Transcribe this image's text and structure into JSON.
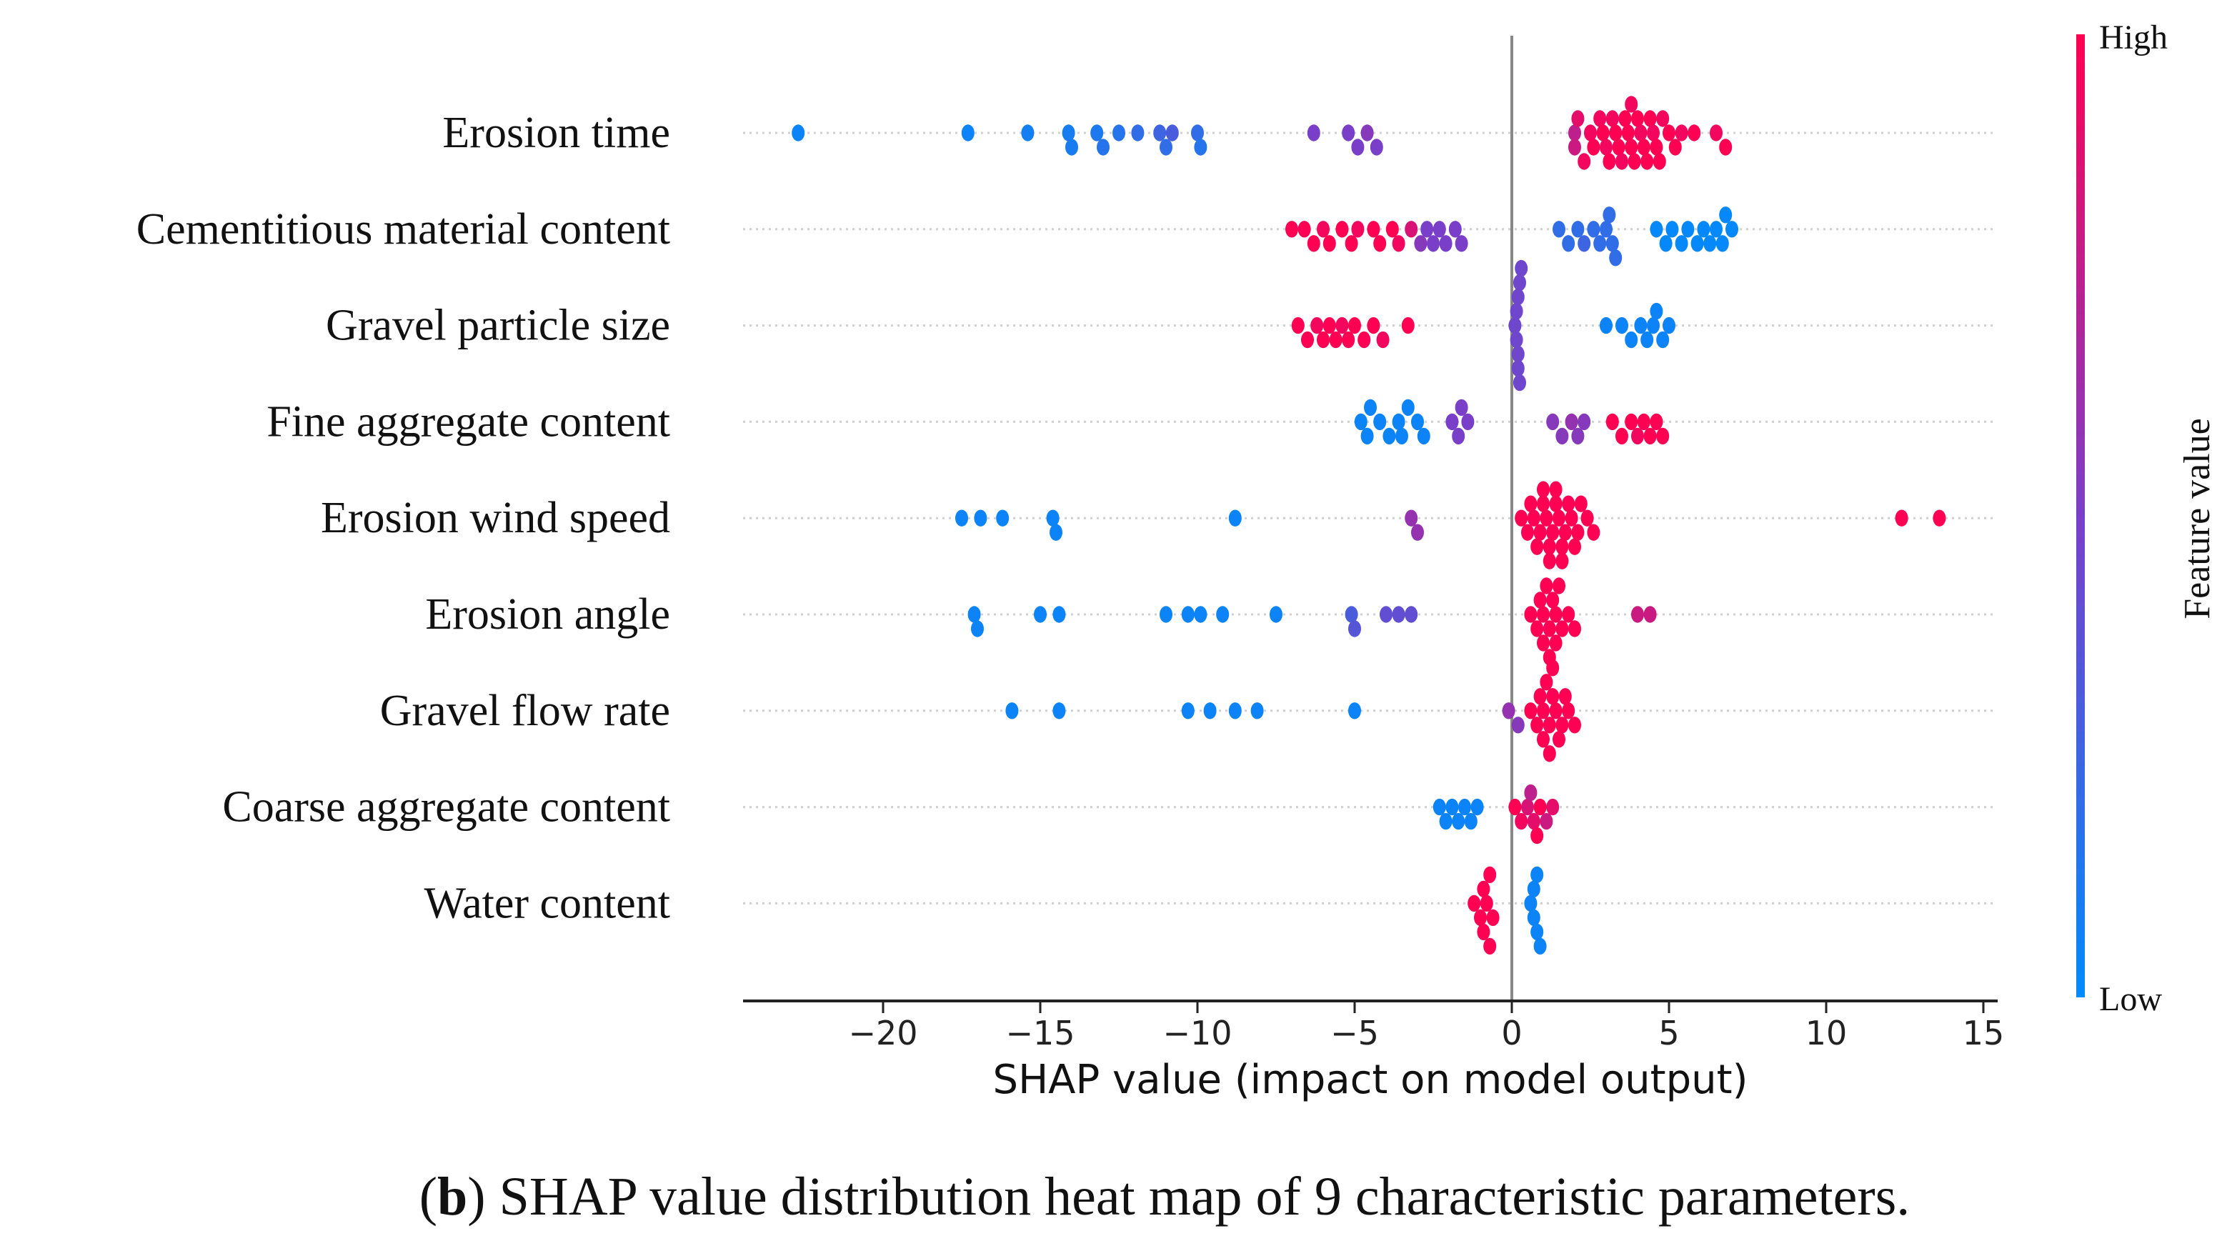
{
  "chart_data": {
    "type": "scatter",
    "subtype": "shap-beeswarm",
    "xlabel": "SHAP value (impact on model output)",
    "xlim": [
      -24.5,
      15.5
    ],
    "xticks": [
      -20,
      -15,
      -10,
      -5,
      0,
      5,
      10,
      15
    ],
    "xtick_labels": [
      "−20",
      "−15",
      "−10",
      "−5",
      "0",
      "5",
      "10",
      "15"
    ],
    "colorbar": {
      "label": "Feature value",
      "high": "High",
      "low": "Low",
      "low_color": "#008bfb",
      "mid_color": "#7a3fc8",
      "high_color": "#ff0052"
    },
    "caption": {
      "letter": "b",
      "text": ") SHAP value distribution heat map of 9 characteristic parameters.",
      "open": "("
    },
    "features": [
      {
        "name": "Erosion time",
        "points": [
          [
            -22.7,
            0.05
          ],
          [
            -17.3,
            0.05
          ],
          [
            -15.4,
            0.08
          ],
          [
            -14.1,
            0.1
          ],
          [
            -14.0,
            0.1
          ],
          [
            -13.2,
            0.12
          ],
          [
            -13.0,
            0.15
          ],
          [
            -12.5,
            0.15
          ],
          [
            -11.9,
            0.2
          ],
          [
            -11.2,
            0.25
          ],
          [
            -11.0,
            0.2
          ],
          [
            -10.8,
            0.3
          ],
          [
            -10.0,
            0.2
          ],
          [
            -9.9,
            0.15
          ],
          [
            -6.3,
            0.5
          ],
          [
            -5.2,
            0.5
          ],
          [
            -4.9,
            0.5
          ],
          [
            -4.6,
            0.55
          ],
          [
            -4.3,
            0.5
          ],
          [
            2.0,
            0.75
          ],
          [
            2.0,
            0.8
          ],
          [
            2.1,
            0.9
          ],
          [
            2.3,
            0.95
          ],
          [
            2.5,
            0.95
          ],
          [
            2.6,
            1
          ],
          [
            2.8,
            0.95
          ],
          [
            2.9,
            1
          ],
          [
            3.0,
            0.95
          ],
          [
            3.1,
            1
          ],
          [
            3.2,
            0.95
          ],
          [
            3.3,
            1
          ],
          [
            3.4,
            1
          ],
          [
            3.5,
            0.95
          ],
          [
            3.6,
            1
          ],
          [
            3.7,
            1
          ],
          [
            3.8,
            1
          ],
          [
            3.8,
            0.95
          ],
          [
            3.9,
            1
          ],
          [
            4.0,
            1
          ],
          [
            4.1,
            0.95
          ],
          [
            4.2,
            1
          ],
          [
            4.3,
            1
          ],
          [
            4.4,
            1
          ],
          [
            4.5,
            0.95
          ],
          [
            4.6,
            1
          ],
          [
            4.7,
            1
          ],
          [
            4.8,
            0.95
          ],
          [
            5.0,
            1
          ],
          [
            5.2,
            1
          ],
          [
            5.4,
            0.95
          ],
          [
            5.8,
            1
          ],
          [
            6.5,
            0.95
          ],
          [
            6.8,
            1
          ]
        ]
      },
      {
        "name": "Cementitious material content",
        "points": [
          [
            -7.0,
            1
          ],
          [
            -6.6,
            1
          ],
          [
            -6.3,
            1
          ],
          [
            -6.0,
            0.95
          ],
          [
            -5.8,
            1
          ],
          [
            -5.4,
            1
          ],
          [
            -5.1,
            1
          ],
          [
            -4.9,
            0.95
          ],
          [
            -4.4,
            1
          ],
          [
            -4.2,
            1
          ],
          [
            -3.8,
            1
          ],
          [
            -3.6,
            0.95
          ],
          [
            -3.2,
            0.85
          ],
          [
            -2.9,
            0.55
          ],
          [
            -2.7,
            0.5
          ],
          [
            -2.5,
            0.5
          ],
          [
            -2.3,
            0.5
          ],
          [
            -2.1,
            0.5
          ],
          [
            -1.8,
            0.5
          ],
          [
            -1.6,
            0.5
          ],
          [
            1.5,
            0.2
          ],
          [
            1.8,
            0.2
          ],
          [
            2.1,
            0.2
          ],
          [
            2.3,
            0.25
          ],
          [
            2.6,
            0.2
          ],
          [
            2.8,
            0.2
          ],
          [
            3.0,
            0.2
          ],
          [
            3.1,
            0.2
          ],
          [
            3.2,
            0.2
          ],
          [
            3.3,
            0.2
          ],
          [
            4.6,
            0.02
          ],
          [
            4.9,
            0.02
          ],
          [
            5.1,
            0.02
          ],
          [
            5.4,
            0.02
          ],
          [
            5.6,
            0.02
          ],
          [
            5.9,
            0.02
          ],
          [
            6.1,
            0.02
          ],
          [
            6.3,
            0.02
          ],
          [
            6.5,
            0.02
          ],
          [
            6.7,
            0.02
          ],
          [
            6.8,
            0.02
          ],
          [
            7.0,
            0.02
          ]
        ]
      },
      {
        "name": "Gravel particle size",
        "points": [
          [
            -6.8,
            1
          ],
          [
            -6.5,
            1
          ],
          [
            -6.2,
            0.95
          ],
          [
            -6.0,
            1
          ],
          [
            -5.8,
            1
          ],
          [
            -5.6,
            1
          ],
          [
            -5.4,
            0.95
          ],
          [
            -5.2,
            1
          ],
          [
            -5.0,
            1
          ],
          [
            -4.7,
            1
          ],
          [
            -4.4,
            1
          ],
          [
            -4.1,
            0.95
          ],
          [
            -3.3,
            1
          ],
          [
            0.1,
            0.45
          ],
          [
            0.15,
            0.45
          ],
          [
            0.2,
            0.45
          ],
          [
            0.2,
            0.45
          ],
          [
            0.25,
            0.45
          ],
          [
            0.3,
            0.45
          ],
          [
            0.2,
            0.45
          ],
          [
            0.15,
            0.45
          ],
          [
            0.25,
            0.45
          ],
          [
            3.0,
            0.05
          ],
          [
            3.5,
            0.05
          ],
          [
            3.8,
            0.05
          ],
          [
            4.1,
            0.05
          ],
          [
            4.3,
            0.05
          ],
          [
            4.5,
            0.05
          ],
          [
            4.6,
            0.05
          ],
          [
            4.8,
            0.05
          ],
          [
            5.0,
            0.05
          ]
        ]
      },
      {
        "name": "Fine aggregate content",
        "points": [
          [
            -4.8,
            0.05
          ],
          [
            -4.5,
            0.05
          ],
          [
            -4.2,
            0.05
          ],
          [
            -3.9,
            0.05
          ],
          [
            -3.6,
            0.05
          ],
          [
            -3.3,
            0.05
          ],
          [
            -3.0,
            0.05
          ],
          [
            -2.8,
            0.05
          ],
          [
            -4.6,
            0.05
          ],
          [
            -3.5,
            0.05
          ],
          [
            -1.9,
            0.5
          ],
          [
            -1.7,
            0.5
          ],
          [
            -1.6,
            0.5
          ],
          [
            -1.4,
            0.5
          ],
          [
            1.3,
            0.55
          ],
          [
            1.6,
            0.55
          ],
          [
            1.9,
            0.6
          ],
          [
            2.1,
            0.55
          ],
          [
            2.3,
            0.55
          ],
          [
            3.2,
            1
          ],
          [
            3.5,
            1
          ],
          [
            3.8,
            1
          ],
          [
            4.0,
            0.95
          ],
          [
            4.2,
            1
          ],
          [
            4.4,
            1
          ],
          [
            4.6,
            1
          ],
          [
            4.8,
            1
          ]
        ]
      },
      {
        "name": "Erosion wind speed",
        "points": [
          [
            -17.5,
            0.05
          ],
          [
            -16.9,
            0.05
          ],
          [
            -16.2,
            0.05
          ],
          [
            -14.6,
            0.05
          ],
          [
            -14.5,
            0.05
          ],
          [
            -8.8,
            0.05
          ],
          [
            -3.2,
            0.6
          ],
          [
            -3.0,
            0.6
          ],
          [
            0.3,
            1
          ],
          [
            0.5,
            1
          ],
          [
            0.6,
            1
          ],
          [
            0.7,
            1
          ],
          [
            0.8,
            1
          ],
          [
            0.9,
            1
          ],
          [
            1.0,
            1
          ],
          [
            1.0,
            1
          ],
          [
            1.1,
            1
          ],
          [
            1.2,
            1
          ],
          [
            1.2,
            1
          ],
          [
            1.3,
            1
          ],
          [
            1.4,
            1
          ],
          [
            1.4,
            1
          ],
          [
            1.5,
            1
          ],
          [
            1.6,
            1
          ],
          [
            1.6,
            1
          ],
          [
            1.7,
            1
          ],
          [
            1.8,
            1
          ],
          [
            1.9,
            1
          ],
          [
            2.0,
            1
          ],
          [
            2.1,
            1
          ],
          [
            2.2,
            1
          ],
          [
            2.4,
            1
          ],
          [
            2.6,
            1
          ],
          [
            12.4,
            1
          ],
          [
            13.6,
            1
          ]
        ]
      },
      {
        "name": "Erosion angle",
        "points": [
          [
            -17.1,
            0.05
          ],
          [
            -17.0,
            0.05
          ],
          [
            -15.0,
            0.05
          ],
          [
            -14.4,
            0.05
          ],
          [
            -11.0,
            0.05
          ],
          [
            -10.3,
            0.05
          ],
          [
            -9.9,
            0.05
          ],
          [
            -9.2,
            0.05
          ],
          [
            -7.5,
            0.05
          ],
          [
            -5.1,
            0.3
          ],
          [
            -5.0,
            0.35
          ],
          [
            -4.0,
            0.4
          ],
          [
            -3.6,
            0.4
          ],
          [
            -3.2,
            0.4
          ],
          [
            0.6,
            1
          ],
          [
            0.8,
            1
          ],
          [
            0.9,
            1
          ],
          [
            1.0,
            1
          ],
          [
            1.1,
            1
          ],
          [
            1.2,
            1
          ],
          [
            1.2,
            1
          ],
          [
            1.3,
            1
          ],
          [
            1.4,
            1
          ],
          [
            1.5,
            1
          ],
          [
            1.6,
            1
          ],
          [
            1.8,
            1
          ],
          [
            2.0,
            1
          ],
          [
            1.0,
            1
          ],
          [
            1.4,
            1
          ],
          [
            4.0,
            0.8
          ],
          [
            4.4,
            0.8
          ]
        ]
      },
      {
        "name": "Gravel flow rate",
        "points": [
          [
            -15.9,
            0.05
          ],
          [
            -14.4,
            0.05
          ],
          [
            -10.3,
            0.05
          ],
          [
            -9.6,
            0.05
          ],
          [
            -8.8,
            0.05
          ],
          [
            -8.1,
            0.05
          ],
          [
            -5.0,
            0.05
          ],
          [
            -0.1,
            0.6
          ],
          [
            0.2,
            0.55
          ],
          [
            0.6,
            1
          ],
          [
            0.8,
            1
          ],
          [
            0.9,
            1
          ],
          [
            1.0,
            1
          ],
          [
            1.1,
            1
          ],
          [
            1.2,
            1
          ],
          [
            1.3,
            1
          ],
          [
            1.3,
            1
          ],
          [
            1.4,
            1
          ],
          [
            1.5,
            1
          ],
          [
            1.6,
            1
          ],
          [
            1.7,
            1
          ],
          [
            1.8,
            1
          ],
          [
            2.0,
            1
          ],
          [
            1.2,
            1
          ],
          [
            1.0,
            1
          ]
        ]
      },
      {
        "name": "Coarse aggregate content",
        "points": [
          [
            -2.3,
            0.05
          ],
          [
            -2.1,
            0.05
          ],
          [
            -1.9,
            0.05
          ],
          [
            -1.7,
            0.05
          ],
          [
            -1.5,
            0.05
          ],
          [
            -1.3,
            0.05
          ],
          [
            -1.1,
            0.05
          ],
          [
            0.1,
            1
          ],
          [
            0.3,
            0.95
          ],
          [
            0.5,
            0.85
          ],
          [
            0.7,
            0.9
          ],
          [
            0.9,
            1
          ],
          [
            1.1,
            0.8
          ],
          [
            1.3,
            0.9
          ],
          [
            0.8,
            1
          ],
          [
            0.6,
            0.75
          ]
        ]
      },
      {
        "name": "Water content",
        "points": [
          [
            -1.2,
            1
          ],
          [
            -1.0,
            1
          ],
          [
            -0.9,
            1
          ],
          [
            -0.8,
            1
          ],
          [
            -0.7,
            1
          ],
          [
            -0.6,
            1
          ],
          [
            -0.9,
            1
          ],
          [
            -0.7,
            1
          ],
          [
            0.6,
            0.05
          ],
          [
            0.7,
            0.05
          ],
          [
            0.8,
            0.05
          ],
          [
            0.9,
            0.05
          ],
          [
            0.7,
            0.05
          ],
          [
            0.8,
            0.05
          ]
        ]
      }
    ]
  }
}
